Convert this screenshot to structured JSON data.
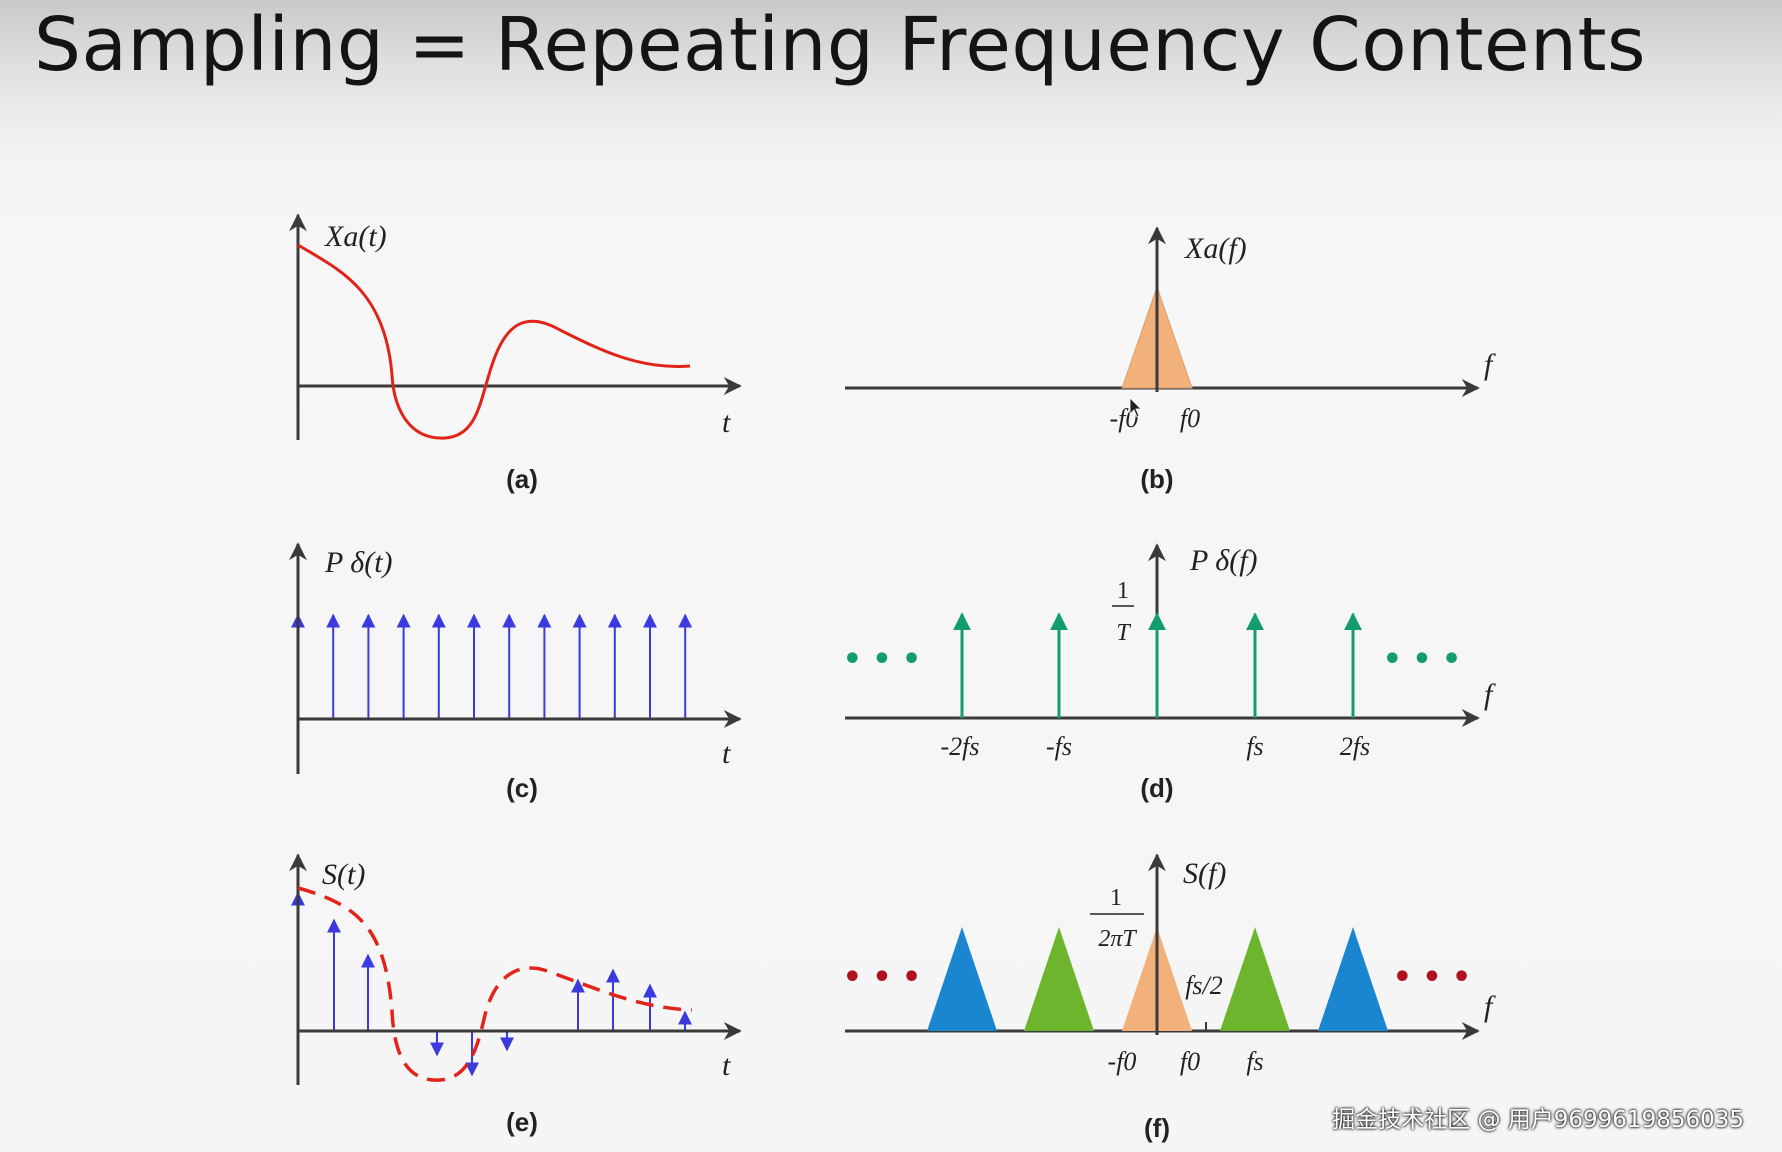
{
  "title": "Sampling = Repeating Frequency Contents",
  "panels": {
    "a": {
      "label": "(a)",
      "ylabel": "Xa(t)",
      "xlabel": "t"
    },
    "b": {
      "label": "(b)",
      "ylabel": "Xa(f)",
      "xlabel": "f",
      "ticks": [
        "-f0",
        "f0"
      ]
    },
    "c": {
      "label": "(c)",
      "ylabel": "P δ(t)",
      "xlabel": "t",
      "impulse_count": 12
    },
    "d": {
      "label": "(d)",
      "ylabel": "P δ(f)",
      "xlabel": "f",
      "amp_num": "1",
      "amp_den": "T",
      "ticks": [
        "-2fs",
        "-fs",
        "fs",
        "2fs"
      ],
      "ellipsis": "• • •"
    },
    "e": {
      "label": "(e)",
      "ylabel": "S(t)",
      "xlabel": "t"
    },
    "f": {
      "label": "(f)",
      "ylabel": "S(f)",
      "xlabel": "f",
      "amp_num": "1",
      "amp_den": "2πT",
      "half_label": "fs/2",
      "ticks": [
        "-f0",
        "f0",
        "fs"
      ],
      "ellipsis": "• • •"
    }
  },
  "colors": {
    "signal": "#e2231a",
    "impulse_time": "#3a3ae0",
    "impulse_freq": "#139c6e",
    "baseband": "#f2b07a",
    "replica1": "#6cb52d",
    "replica2": "#1a86cf",
    "dots_f": "#b01020"
  },
  "watermark": "掘金技术社区 @ 用户9699619856035"
}
